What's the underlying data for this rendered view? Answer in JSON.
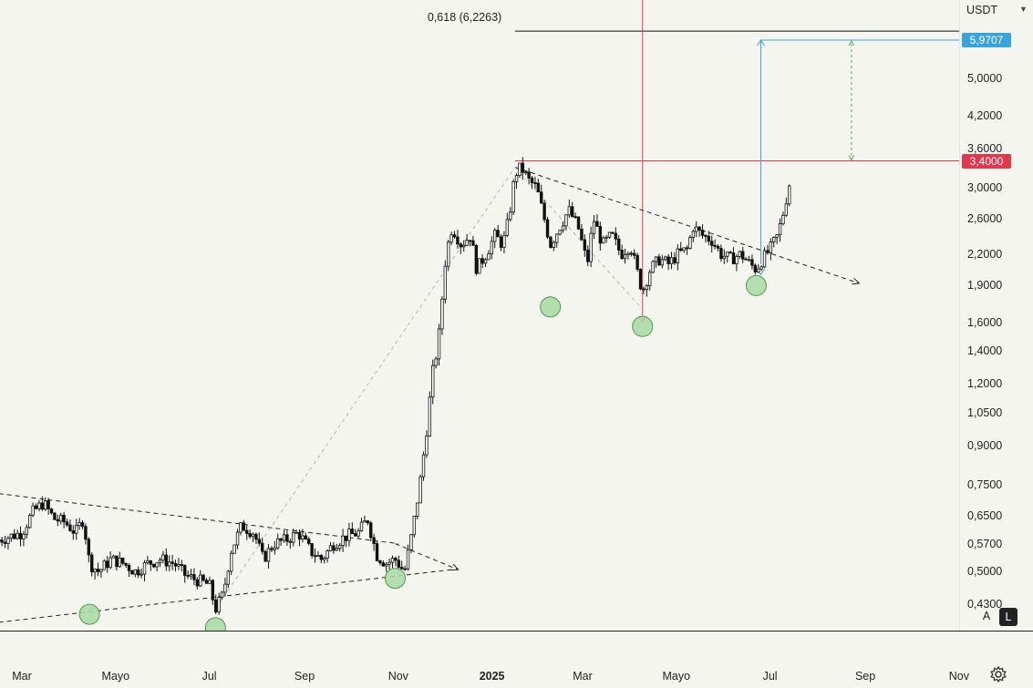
{
  "currency": "USDT",
  "scale_buttons": {
    "auto": "A",
    "log": "L"
  },
  "icons": {
    "settings": "gear-icon",
    "currency_dropdown": "chevron-down-icon"
  },
  "chart_data": {
    "type": "candlestick",
    "scale": "log",
    "ylim": [
      0.38,
      7.2
    ],
    "y_ticks": [
      "5,0000",
      "4,2000",
      "3,6000",
      "3,0000",
      "2,6000",
      "2,2000",
      "1,9000",
      "1,6000",
      "1,4000",
      "1,2000",
      "1,0500",
      "0,9000",
      "0,7500",
      "0,6500",
      "0,5700",
      "0,5000",
      "0,4300"
    ],
    "x_ticks": [
      {
        "label": "Mar",
        "date": "2024-03-01"
      },
      {
        "label": "Mayo",
        "date": "2024-05-01"
      },
      {
        "label": "Jul",
        "date": "2024-07-01"
      },
      {
        "label": "Sep",
        "date": "2024-09-01"
      },
      {
        "label": "Nov",
        "date": "2024-11-01"
      },
      {
        "label": "2025",
        "date": "2025-01-01",
        "bold": true
      },
      {
        "label": "Mar",
        "date": "2025-03-01"
      },
      {
        "label": "Mayo",
        "date": "2025-05-01"
      },
      {
        "label": "Jul",
        "date": "2025-07-01"
      },
      {
        "label": "Sep",
        "date": "2025-09-01"
      },
      {
        "label": "Nov",
        "date": "2025-11-01"
      }
    ],
    "series_close": [
      [
        "2024-02-15",
        0.58
      ],
      [
        "2024-03-01",
        0.6
      ],
      [
        "2024-03-08",
        0.66
      ],
      [
        "2024-03-15",
        0.69
      ],
      [
        "2024-03-22",
        0.64
      ],
      [
        "2024-03-29",
        0.63
      ],
      [
        "2024-04-05",
        0.6
      ],
      [
        "2024-04-10",
        0.64
      ],
      [
        "2024-04-14",
        0.52
      ],
      [
        "2024-04-20",
        0.5
      ],
      [
        "2024-04-28",
        0.53
      ],
      [
        "2024-05-06",
        0.52
      ],
      [
        "2024-05-14",
        0.5
      ],
      [
        "2024-05-22",
        0.52
      ],
      [
        "2024-05-30",
        0.53
      ],
      [
        "2024-06-08",
        0.52
      ],
      [
        "2024-06-16",
        0.49
      ],
      [
        "2024-06-24",
        0.48
      ],
      [
        "2024-07-01",
        0.47
      ],
      [
        "2024-07-05",
        0.42
      ],
      [
        "2024-07-10",
        0.45
      ],
      [
        "2024-07-15",
        0.55
      ],
      [
        "2024-07-22",
        0.62
      ],
      [
        "2024-07-30",
        0.6
      ],
      [
        "2024-08-05",
        0.53
      ],
      [
        "2024-08-12",
        0.57
      ],
      [
        "2024-08-20",
        0.58
      ],
      [
        "2024-08-28",
        0.6
      ],
      [
        "2024-09-05",
        0.55
      ],
      [
        "2024-09-12",
        0.53
      ],
      [
        "2024-09-20",
        0.57
      ],
      [
        "2024-09-28",
        0.59
      ],
      [
        "2024-10-06",
        0.6
      ],
      [
        "2024-10-12",
        0.64
      ],
      [
        "2024-10-18",
        0.54
      ],
      [
        "2024-10-24",
        0.52
      ],
      [
        "2024-10-30",
        0.53
      ],
      [
        "2024-11-05",
        0.5
      ],
      [
        "2024-11-10",
        0.6
      ],
      [
        "2024-11-15",
        0.75
      ],
      [
        "2024-11-20",
        1.0
      ],
      [
        "2024-11-23",
        1.25
      ],
      [
        "2024-11-27",
        1.45
      ],
      [
        "2024-12-02",
        2.2
      ],
      [
        "2024-12-06",
        2.5
      ],
      [
        "2024-12-12",
        2.3
      ],
      [
        "2024-12-18",
        2.4
      ],
      [
        "2024-12-22",
        2.05
      ],
      [
        "2024-12-28",
        2.2
      ],
      [
        "2025-01-03",
        2.4
      ],
      [
        "2025-01-08",
        2.3
      ],
      [
        "2025-01-12",
        2.6
      ],
      [
        "2025-01-16",
        3.2
      ],
      [
        "2025-01-20",
        3.3
      ],
      [
        "2025-01-25",
        3.1
      ],
      [
        "2025-01-30",
        3.0
      ],
      [
        "2025-02-04",
        2.6
      ],
      [
        "2025-02-08",
        2.3
      ],
      [
        "2025-02-14",
        2.5
      ],
      [
        "2025-02-20",
        2.7
      ],
      [
        "2025-02-26",
        2.5
      ],
      [
        "2025-03-04",
        2.1
      ],
      [
        "2025-03-08",
        2.6
      ],
      [
        "2025-03-14",
        2.3
      ],
      [
        "2025-03-20",
        2.4
      ],
      [
        "2025-03-26",
        2.2
      ],
      [
        "2025-04-01",
        2.3
      ],
      [
        "2025-04-06",
        2.0
      ],
      [
        "2025-04-09",
        1.85
      ],
      [
        "2025-04-14",
        2.05
      ],
      [
        "2025-04-20",
        2.15
      ],
      [
        "2025-04-26",
        2.1
      ],
      [
        "2025-05-02",
        2.2
      ],
      [
        "2025-05-08",
        2.25
      ],
      [
        "2025-05-12",
        2.5
      ],
      [
        "2025-05-18",
        2.4
      ],
      [
        "2025-05-24",
        2.35
      ],
      [
        "2025-05-30",
        2.2
      ],
      [
        "2025-06-05",
        2.15
      ],
      [
        "2025-06-12",
        2.2
      ],
      [
        "2025-06-18",
        2.1
      ],
      [
        "2025-06-22",
        2.05
      ],
      [
        "2025-06-26",
        2.15
      ],
      [
        "2025-07-01",
        2.25
      ],
      [
        "2025-07-06",
        2.4
      ],
      [
        "2025-07-10",
        2.7
      ],
      [
        "2025-07-13",
        3.0
      ],
      [
        "2025-07-15",
        3.2
      ]
    ],
    "annotations": {
      "fib_label": "0,618 (6,2263)",
      "fib_level": 6.2263,
      "target_level": 5.9707,
      "target_badge": "5,9707",
      "resistance_level": 3.4,
      "resistance_badge": "3,4000",
      "support_circles": [
        {
          "date": "2024-04-14",
          "value": 0.41
        },
        {
          "date": "2024-07-05",
          "value": 0.385
        },
        {
          "date": "2024-10-30",
          "value": 0.485
        },
        {
          "date": "2025-02-08",
          "value": 1.72
        },
        {
          "date": "2025-04-09",
          "value": 1.57
        },
        {
          "date": "2025-06-22",
          "value": 1.9
        }
      ],
      "trendlines": [
        {
          "from": [
            "2024-02-15",
            0.72
          ],
          "to": [
            "2024-11-01",
            0.57
          ],
          "dashed": true
        },
        {
          "from": [
            "2024-02-15",
            0.395
          ],
          "to": [
            "2024-12-06",
            0.505
          ],
          "dashed": true
        },
        {
          "from": [
            "2024-10-30",
            0.57
          ],
          "to": [
            "2024-12-10",
            0.505
          ],
          "dashed": true,
          "arrow": true
        },
        {
          "from": [
            "2025-01-16",
            3.3
          ],
          "to": [
            "2025-08-28",
            1.92
          ],
          "dashed": true,
          "arrow": true
        },
        {
          "from": [
            "2024-07-05",
            0.42
          ],
          "to": [
            "2025-01-16",
            3.3
          ],
          "dashed": true,
          "light": true
        },
        {
          "from": [
            "2025-01-16",
            3.3
          ],
          "to": [
            "2025-04-09",
            1.7
          ],
          "dashed": true,
          "light": true
        }
      ],
      "vertical_line_date": "2025-04-09",
      "measure_date": "2025-06-25",
      "projection_date": "2025-08-23"
    },
    "colors": {
      "candle": "#111111",
      "target": "#3ba3d9",
      "resistance": "#e0394d",
      "circle_fill": "#a8d9a4",
      "circle_stroke": "#4c9a4c",
      "projection": "#4caf50"
    }
  }
}
